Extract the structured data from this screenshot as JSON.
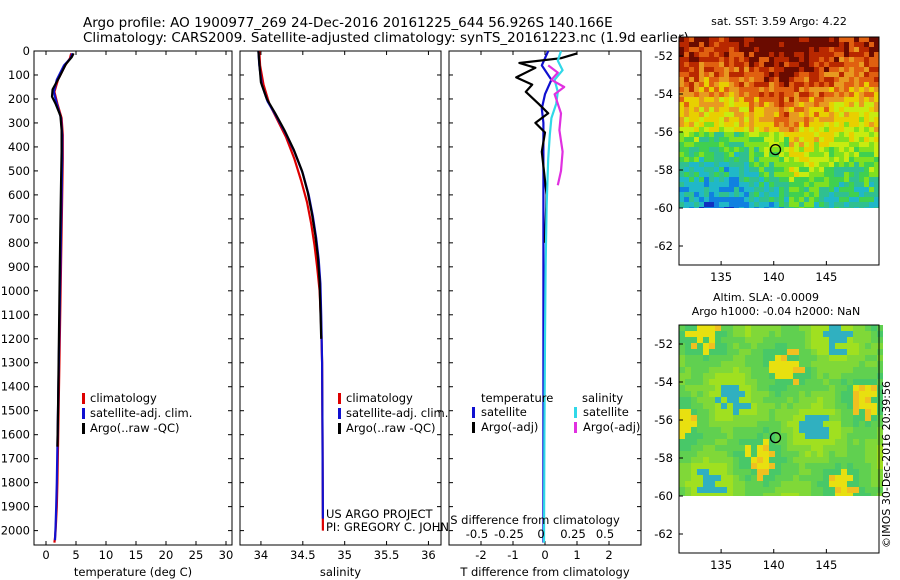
{
  "title_line1": "Argo profile: AO 1900977_269 24-Dec-2016 20161225_644 56.926S 140.166E",
  "title_line2": "Climatology: CARS2009. Satellite-adjusted climatology: synTS_20161223.nc (1.9d earlier)",
  "chart_data": [
    {
      "type": "line",
      "xlabel": "temperature (deg C)",
      "ylabel": "",
      "xlim": [
        -2,
        31
      ],
      "ylim": [
        2060,
        0
      ],
      "xticks": [
        0,
        5,
        10,
        15,
        20,
        25,
        30
      ],
      "xtick_labels": [
        "0",
        "5",
        "10",
        "15",
        "20",
        "25",
        "30"
      ],
      "yticks": [
        0,
        100,
        200,
        300,
        400,
        500,
        600,
        700,
        800,
        900,
        1000,
        1100,
        1200,
        1300,
        1400,
        1500,
        1600,
        1700,
        1800,
        1900,
        2000
      ],
      "ytick_labels": [
        "0",
        "100",
        "200",
        "300",
        "400",
        "500",
        "600",
        "700",
        "800",
        "900",
        "1000",
        "1100",
        "1200",
        "1300",
        "1400",
        "1500",
        "1600",
        "1700",
        "1800",
        "1900",
        "2000"
      ],
      "legend": {
        "position": "lower-middle",
        "entries": [
          "climatology",
          "satellite-adj. clim.",
          "Argo(..raw -QC)"
        ]
      },
      "series": [
        {
          "name": "climatology",
          "color": "#dd0000",
          "x": [
            4.2,
            4.0,
            3.2,
            2.0,
            1.4,
            1.9,
            2.6,
            2.8,
            2.8,
            2.7,
            2.6,
            2.5,
            2.4,
            2.3,
            2.2,
            2.1,
            2.0,
            1.9,
            1.8,
            1.7,
            1.6,
            1.5,
            1.4
          ],
          "y": [
            10,
            30,
            60,
            120,
            170,
            220,
            280,
            350,
            450,
            600,
            750,
            900,
            1050,
            1200,
            1350,
            1500,
            1650,
            1800,
            1900,
            1950,
            2000,
            2030,
            2050
          ]
        },
        {
          "name": "satellite-adj. clim.",
          "color": "#1010d0",
          "x": [
            4.4,
            4.1,
            3.0,
            1.8,
            1.3,
            1.8,
            2.5,
            2.7,
            2.7,
            2.6,
            2.5,
            2.4,
            2.3,
            2.2,
            2.1,
            2.0,
            1.9,
            1.8,
            1.7,
            1.6,
            1.5
          ],
          "y": [
            10,
            30,
            60,
            120,
            170,
            220,
            280,
            350,
            450,
            600,
            750,
            900,
            1050,
            1200,
            1350,
            1500,
            1650,
            1800,
            1900,
            1980,
            2040
          ]
        },
        {
          "name": "Argo(..raw -QC)",
          "color": "#000000",
          "x": [
            4.6,
            4.3,
            3.3,
            2.2,
            1.1,
            1.0,
            1.6,
            2.4,
            2.6,
            2.6,
            2.5,
            2.4,
            2.3,
            2.2,
            2.1,
            2.0,
            1.9
          ],
          "y": [
            10,
            25,
            55,
            110,
            160,
            190,
            220,
            270,
            330,
            420,
            560,
            720,
            900,
            1100,
            1300,
            1500,
            1650
          ]
        }
      ]
    },
    {
      "type": "line",
      "xlabel": "salinity",
      "ylabel": "",
      "xlim": [
        33.75,
        36.15
      ],
      "ylim": [
        2060,
        0
      ],
      "xticks": [
        34,
        34.5,
        35,
        35.5,
        36
      ],
      "xtick_labels": [
        "34",
        "34.5",
        "35",
        "35.5",
        "36"
      ],
      "legend": {
        "position": "lower-right",
        "entries": [
          "climatology",
          "satellite-adj. clim.",
          "Argo(..raw -QC)"
        ]
      },
      "annotations": [
        "US ARGO PROJECT",
        "PI: GREGORY C. JOHNSON"
      ],
      "series": [
        {
          "name": "climatology",
          "color": "#dd0000",
          "x": [
            33.98,
            33.99,
            34.03,
            34.1,
            34.2,
            34.3,
            34.4,
            34.48,
            34.55,
            34.6,
            34.64,
            34.67,
            34.7,
            34.72,
            34.73,
            34.735,
            34.74
          ],
          "y": [
            0,
            60,
            140,
            220,
            290,
            360,
            450,
            540,
            630,
            720,
            810,
            900,
            1000,
            1150,
            1300,
            1600,
            2000
          ]
        },
        {
          "name": "satellite-adj. clim.",
          "color": "#1010d0",
          "x": [
            33.97,
            33.98,
            34.01,
            34.08,
            34.18,
            34.29,
            34.4,
            34.5,
            34.57,
            34.62,
            34.66,
            34.69,
            34.71,
            34.72,
            34.73,
            34.735,
            34.74
          ],
          "y": [
            0,
            60,
            140,
            210,
            270,
            340,
            420,
            510,
            600,
            690,
            780,
            870,
            970,
            1100,
            1300,
            1600,
            1950
          ]
        },
        {
          "name": "Argo(..raw -QC)",
          "color": "#000000",
          "x": [
            33.97,
            33.98,
            34.0,
            34.07,
            34.17,
            34.28,
            34.39,
            34.49,
            34.56,
            34.61,
            34.65,
            34.68,
            34.7,
            34.71,
            34.72
          ],
          "y": [
            0,
            50,
            130,
            200,
            260,
            330,
            410,
            500,
            590,
            680,
            770,
            860,
            960,
            1080,
            1200
          ]
        }
      ]
    },
    {
      "type": "line",
      "xlabel": "T difference from climatology",
      "xlabel_top": "S difference from climatology",
      "ylabel": "",
      "xlim": [
        -3,
        3
      ],
      "ylim": [
        2060,
        0
      ],
      "xticks": [
        -2,
        -1,
        0,
        1,
        2
      ],
      "xtick_labels": [
        "-2",
        "-1",
        "0",
        "1",
        "2"
      ],
      "xticks_top": [
        -0.5,
        -0.25,
        0,
        0.25,
        0.5
      ],
      "xtick_labels_top": [
        "-0.5",
        "-0.25",
        "0",
        "0.25",
        "0.5"
      ],
      "legend": {
        "position": "lower",
        "headers": [
          "temperature",
          "salinity"
        ],
        "entries": [
          "satellite",
          "Argo(-adj)",
          "satellite",
          "Argo(-adj)"
        ]
      },
      "series": [
        {
          "name": "satellite (temperature)",
          "color": "#1010d0",
          "x": [
            0.1,
            -0.1,
            0.2,
            0.0,
            -0.1,
            -0.05,
            -0.05,
            -0.05,
            -0.05,
            -0.05,
            -0.05,
            -0.05
          ],
          "y": [
            0,
            60,
            120,
            180,
            240,
            300,
            400,
            700,
            1000,
            1400,
            1800,
            2050
          ]
        },
        {
          "name": "Argo(-adj) (temperature)",
          "color": "#000000",
          "x": [
            1.0,
            0.5,
            -0.8,
            -0.3,
            -0.9,
            -0.4,
            -0.6,
            -0.2,
            0.1,
            -0.3,
            0.0,
            -0.1,
            0.05,
            0.0
          ],
          "y": [
            10,
            30,
            50,
            70,
            110,
            140,
            170,
            220,
            260,
            300,
            340,
            420,
            600,
            800
          ]
        },
        {
          "name": "satellite (salinity)",
          "color": "#30d8e8",
          "x": [
            0.5,
            0.4,
            0.55,
            0.3,
            0.4,
            0.35,
            0.2,
            0.15,
            0.1,
            0.05,
            0.02,
            0.0,
            -0.02,
            -0.03
          ],
          "y": [
            0,
            40,
            80,
            120,
            170,
            220,
            280,
            350,
            450,
            650,
            900,
            1200,
            1600,
            2050
          ]
        },
        {
          "name": "Argo(-adj) (salinity)",
          "color": "#e030e0",
          "x": [
            0.1,
            0.4,
            0.2,
            0.6,
            0.3,
            0.5,
            0.45,
            0.55,
            0.5,
            0.4
          ],
          "y": [
            60,
            90,
            120,
            150,
            180,
            260,
            330,
            420,
            500,
            560
          ]
        }
      ]
    },
    {
      "type": "heatmap",
      "title": "sat. SST: 3.59 Argo: 4.22",
      "xlim": [
        131,
        150
      ],
      "ylim": [
        -63,
        -51
      ],
      "xticks": [
        135,
        140,
        145
      ],
      "xtick_labels": [
        "135",
        "140",
        "145"
      ],
      "yticks": [
        -52,
        -54,
        -56,
        -58,
        -60,
        -62
      ],
      "ytick_labels": [
        "-52",
        "-54",
        "-56",
        "-58",
        "-60",
        "-62"
      ],
      "marker": {
        "lon": 140.166,
        "lat": -56.926
      }
    },
    {
      "type": "heatmap",
      "title": "Altim. SLA: -0.0009",
      "subtitle": "Argo h1000: -0.04 h2000: NaN",
      "xlim": [
        131,
        150
      ],
      "ylim": [
        -63,
        -51
      ],
      "xticks": [
        135,
        140,
        145
      ],
      "xtick_labels": [
        "135",
        "140",
        "145"
      ],
      "yticks": [
        -52,
        -54,
        -56,
        -58,
        -60,
        -62
      ],
      "ytick_labels": [
        "-52",
        "-54",
        "-56",
        "-58",
        "-60",
        "-62"
      ],
      "marker": {
        "lon": 140.166,
        "lat": -56.926
      }
    }
  ],
  "side_label": "©IMOS 30-Dec-2016 20:39:56"
}
